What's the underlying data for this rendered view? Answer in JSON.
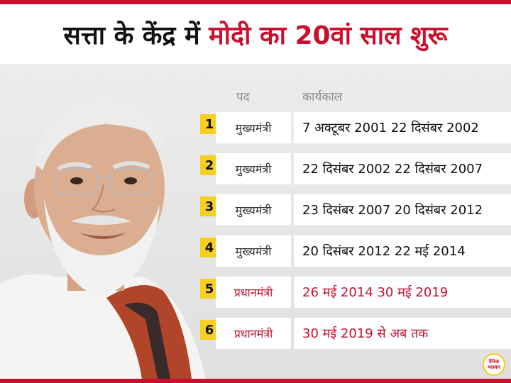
{
  "header": {
    "title_part1": "सत्ता के केंद्र में ",
    "title_part2": "मोदी का 20वां साल शुरू"
  },
  "columns": {
    "post": "पद",
    "term": "कार्यकाल"
  },
  "rows": [
    {
      "num": "1",
      "post": "मुख्यमंत्री",
      "term": "7 अक्टूबर 2001 22 दिसंबर 2002"
    },
    {
      "num": "2",
      "post": "मुख्यमंत्री",
      "term": "22 दिसंबर 2002 22 दिसंबर 2007"
    },
    {
      "num": "3",
      "post": "मुख्यमंत्री",
      "term": "23 दिसंबर 2007 20 दिसंबर 2012"
    },
    {
      "num": "4",
      "post": "मुख्यमंत्री",
      "term": "20 दिसंबर 2012 22 मई 2014"
    },
    {
      "num": "5",
      "post": "प्रधानमंत्री",
      "term": "26 मई 2014 30 मई 2019"
    },
    {
      "num": "6",
      "post": "प्रधानमंत्री",
      "term": "30 मई 2019 से अब तक"
    }
  ],
  "logo": {
    "line1": "दैनिक",
    "line2": "भास्कर"
  },
  "colors": {
    "accent_red": "#c8102e",
    "badge_yellow": "#f6cf1f",
    "background": "#e6e6e6"
  }
}
